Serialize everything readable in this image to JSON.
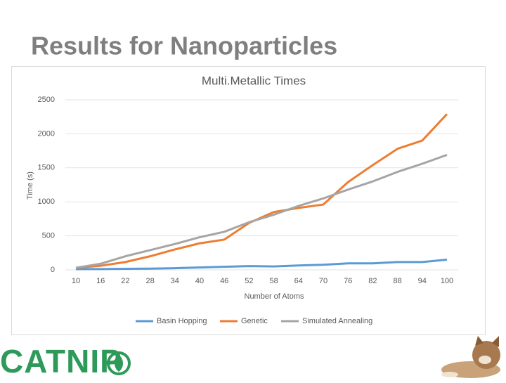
{
  "slide_title": "Results for Nanoparticles",
  "logo": "CATNIP",
  "chart_data": {
    "type": "line",
    "title": "Multi.Metallic Times",
    "x_label": "Number of Atoms",
    "y_label": "Time (s)",
    "x": [
      10,
      16,
      22,
      28,
      34,
      40,
      46,
      52,
      58,
      64,
      70,
      76,
      82,
      88,
      94,
      100
    ],
    "xlim": [
      10,
      100
    ],
    "xticks": [
      10,
      16,
      22,
      28,
      34,
      40,
      46,
      52,
      58,
      64,
      70,
      76,
      82,
      88,
      94,
      100
    ],
    "ylim": [
      0,
      2500
    ],
    "yticks": [
      0,
      500,
      1000,
      1500,
      2000,
      2500
    ],
    "grid": true,
    "legend": "bottom",
    "series": [
      {
        "name": "Basin Hopping",
        "color": "#5b9bd5",
        "values": [
          10,
          12,
          15,
          18,
          25,
          35,
          45,
          55,
          50,
          65,
          75,
          95,
          95,
          115,
          115,
          150
        ]
      },
      {
        "name": "Genetic",
        "color": "#ed7d31",
        "values": [
          30,
          60,
          115,
          200,
          300,
          390,
          445,
          690,
          850,
          910,
          960,
          1290,
          1540,
          1780,
          1900,
          2290
        ]
      },
      {
        "name": "Simulated Annealing",
        "color": "#a5a5a5",
        "values": [
          30,
          90,
          200,
          290,
          380,
          480,
          560,
          700,
          810,
          940,
          1050,
          1180,
          1300,
          1440,
          1560,
          1690
        ]
      }
    ]
  }
}
